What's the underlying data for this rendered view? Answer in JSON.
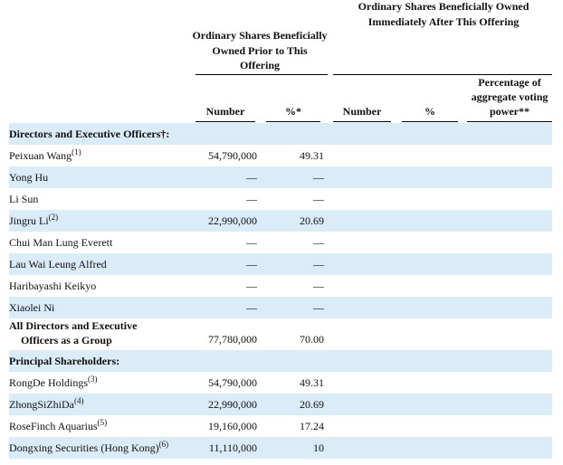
{
  "headers": {
    "prior_group": "Ordinary Shares Beneficially Owned Prior to This Offering",
    "after_group": "Ordinary Shares Beneficially Owned Immediately After This Offering",
    "cols": {
      "number": "Number",
      "pct": "%*",
      "number_after": "Number",
      "pct_after": "%",
      "voting": "Percentage of aggregate voting power**"
    }
  },
  "sections": {
    "directors": "Directors and Executive Officers†:",
    "principal": "Principal Shareholders:"
  },
  "rows": [
    {
      "name": "Peixuan Wang",
      "note": "(1)",
      "number": "54,790,000",
      "pct": "49.31"
    },
    {
      "name": "Yong Hu",
      "note": "",
      "number": "—",
      "pct": "—"
    },
    {
      "name": "Li Sun",
      "note": "",
      "number": "—",
      "pct": "—"
    },
    {
      "name": "Jingru Li",
      "note": "(2)",
      "number": "22,990,000",
      "pct": "20.69"
    },
    {
      "name": "Chui Man Lung Everett",
      "note": "",
      "number": "—",
      "pct": "—"
    },
    {
      "name": "Lau Wai Leung Alfred",
      "note": "",
      "number": "—",
      "pct": "—"
    },
    {
      "name": "Haribayashi Keikyo",
      "note": "",
      "number": "—",
      "pct": "—"
    },
    {
      "name": "Xiaolei Ni",
      "note": "",
      "number": "—",
      "pct": "—"
    }
  ],
  "group": {
    "label_line1": "All Directors and Executive",
    "label_line2": "Officers as a Group",
    "number": "77,780,000",
    "pct": "70.00"
  },
  "holders": [
    {
      "name": "RongDe Holdings",
      "note": "(3)",
      "number": "54,790,000",
      "pct": "49.31"
    },
    {
      "name": "ZhongSiZhiDa",
      "note": "(4)",
      "number": "22,990,000",
      "pct": "20.69"
    },
    {
      "name": "RoseFinch Aquarius",
      "note": "(5)",
      "number": "19,160,000",
      "pct": "17.24"
    },
    {
      "name": "Dongxing Securities (Hong Kong)",
      "note": "(6)",
      "number": "11,110,000",
      "pct": "10"
    }
  ],
  "colors": {
    "band": "#d9ecf7"
  }
}
